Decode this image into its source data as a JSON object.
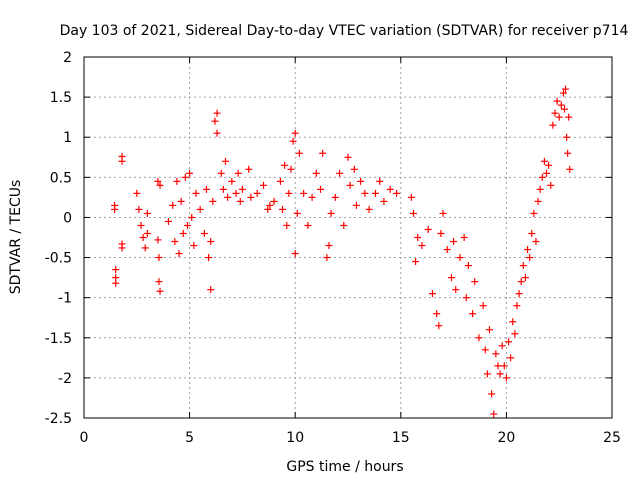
{
  "chart_data": {
    "type": "scatter",
    "title": "Day 103 of 2021, Sidereal Day-to-day VTEC variation (SDTVAR) for receiver p714",
    "xlabel": "GPS time / hours",
    "ylabel": "SDTVAR / TECUs",
    "xlim": [
      0,
      25
    ],
    "ylim": [
      -2.5,
      2
    ],
    "xticks": [
      "0",
      "5",
      "10",
      "15",
      "20",
      "25"
    ],
    "yticks": [
      "-2.5",
      "-2",
      "-1.5",
      "-1",
      "-0.5",
      "0",
      "0.5",
      "1",
      "1.5",
      "2"
    ],
    "grid": true,
    "marker": "+",
    "color": "#ff0000",
    "series": [
      {
        "name": "SDTVAR p714",
        "points": [
          [
            1.45,
            0.15
          ],
          [
            1.45,
            0.1
          ],
          [
            1.5,
            -0.65
          ],
          [
            1.5,
            -0.75
          ],
          [
            1.5,
            -0.82
          ],
          [
            1.8,
            0.76
          ],
          [
            1.8,
            0.7
          ],
          [
            1.8,
            -0.33
          ],
          [
            1.8,
            -0.38
          ],
          [
            2.5,
            0.3
          ],
          [
            2.6,
            0.1
          ],
          [
            2.7,
            -0.1
          ],
          [
            2.8,
            -0.25
          ],
          [
            2.9,
            -0.38
          ],
          [
            3.0,
            -0.2
          ],
          [
            3.0,
            0.05
          ],
          [
            3.5,
            0.45
          ],
          [
            3.6,
            0.4
          ],
          [
            3.5,
            -0.28
          ],
          [
            3.55,
            -0.5
          ],
          [
            3.55,
            -0.8
          ],
          [
            3.6,
            -0.92
          ],
          [
            4.0,
            -0.05
          ],
          [
            4.2,
            0.15
          ],
          [
            4.3,
            -0.3
          ],
          [
            4.4,
            0.45
          ],
          [
            4.5,
            -0.45
          ],
          [
            4.6,
            0.2
          ],
          [
            4.7,
            -0.2
          ],
          [
            4.8,
            0.5
          ],
          [
            4.9,
            -0.1
          ],
          [
            5.0,
            0.55
          ],
          [
            5.1,
            0.0
          ],
          [
            5.2,
            -0.35
          ],
          [
            5.3,
            0.3
          ],
          [
            5.5,
            0.1
          ],
          [
            5.7,
            -0.2
          ],
          [
            5.8,
            0.35
          ],
          [
            5.9,
            -0.5
          ],
          [
            6.0,
            -0.9
          ],
          [
            6.0,
            -0.3
          ],
          [
            6.1,
            0.2
          ],
          [
            6.2,
            1.2
          ],
          [
            6.3,
            1.3
          ],
          [
            6.3,
            1.05
          ],
          [
            6.5,
            0.55
          ],
          [
            6.6,
            0.35
          ],
          [
            6.7,
            0.7
          ],
          [
            6.8,
            0.25
          ],
          [
            7.0,
            0.45
          ],
          [
            7.2,
            0.3
          ],
          [
            7.3,
            0.55
          ],
          [
            7.4,
            0.2
          ],
          [
            7.5,
            0.35
          ],
          [
            7.8,
            0.6
          ],
          [
            7.9,
            0.25
          ],
          [
            8.2,
            0.3
          ],
          [
            8.5,
            0.4
          ],
          [
            8.7,
            0.1
          ],
          [
            8.8,
            0.15
          ],
          [
            9.0,
            0.2
          ],
          [
            9.3,
            0.45
          ],
          [
            9.4,
            0.1
          ],
          [
            9.5,
            0.65
          ],
          [
            9.6,
            -0.1
          ],
          [
            9.7,
            0.3
          ],
          [
            9.8,
            0.6
          ],
          [
            9.9,
            0.95
          ],
          [
            10.0,
            1.05
          ],
          [
            10.0,
            -0.45
          ],
          [
            10.1,
            0.05
          ],
          [
            10.2,
            0.8
          ],
          [
            10.4,
            0.3
          ],
          [
            10.6,
            -0.1
          ],
          [
            10.8,
            0.25
          ],
          [
            11.0,
            0.55
          ],
          [
            11.2,
            0.35
          ],
          [
            11.3,
            0.8
          ],
          [
            11.5,
            -0.5
          ],
          [
            11.6,
            -0.35
          ],
          [
            11.7,
            0.05
          ],
          [
            11.9,
            0.25
          ],
          [
            12.1,
            0.55
          ],
          [
            12.3,
            -0.1
          ],
          [
            12.5,
            0.75
          ],
          [
            12.6,
            0.4
          ],
          [
            12.8,
            0.6
          ],
          [
            12.9,
            0.15
          ],
          [
            13.1,
            0.45
          ],
          [
            13.3,
            0.3
          ],
          [
            13.5,
            0.1
          ],
          [
            13.8,
            0.3
          ],
          [
            14.0,
            0.45
          ],
          [
            14.2,
            0.2
          ],
          [
            14.5,
            0.35
          ],
          [
            14.8,
            0.3
          ],
          [
            15.5,
            0.25
          ],
          [
            15.6,
            0.05
          ],
          [
            15.7,
            -0.55
          ],
          [
            15.8,
            -0.25
          ],
          [
            16.0,
            -0.35
          ],
          [
            16.3,
            -0.15
          ],
          [
            16.5,
            -0.95
          ],
          [
            16.7,
            -1.2
          ],
          [
            16.8,
            -1.35
          ],
          [
            16.9,
            -0.2
          ],
          [
            17.0,
            0.05
          ],
          [
            17.2,
            -0.4
          ],
          [
            17.4,
            -0.75
          ],
          [
            17.5,
            -0.3
          ],
          [
            17.6,
            -0.9
          ],
          [
            17.8,
            -0.5
          ],
          [
            18.0,
            -0.25
          ],
          [
            18.1,
            -1.0
          ],
          [
            18.2,
            -0.6
          ],
          [
            18.4,
            -1.2
          ],
          [
            18.5,
            -0.8
          ],
          [
            18.7,
            -1.5
          ],
          [
            18.9,
            -1.1
          ],
          [
            19.0,
            -1.65
          ],
          [
            19.1,
            -1.95
          ],
          [
            19.2,
            -1.4
          ],
          [
            19.3,
            -2.2
          ],
          [
            19.4,
            -2.45
          ],
          [
            19.5,
            -1.7
          ],
          [
            19.6,
            -1.85
          ],
          [
            19.7,
            -1.95
          ],
          [
            19.8,
            -1.6
          ],
          [
            19.9,
            -1.85
          ],
          [
            20.0,
            -2.0
          ],
          [
            20.1,
            -1.55
          ],
          [
            20.2,
            -1.75
          ],
          [
            20.3,
            -1.3
          ],
          [
            20.4,
            -1.45
          ],
          [
            20.5,
            -1.1
          ],
          [
            20.6,
            -0.95
          ],
          [
            20.7,
            -0.8
          ],
          [
            20.8,
            -0.6
          ],
          [
            20.9,
            -0.75
          ],
          [
            21.0,
            -0.4
          ],
          [
            21.1,
            -0.5
          ],
          [
            21.2,
            -0.2
          ],
          [
            21.3,
            0.05
          ],
          [
            21.4,
            -0.3
          ],
          [
            21.5,
            0.2
          ],
          [
            21.6,
            0.35
          ],
          [
            21.7,
            0.5
          ],
          [
            21.8,
            0.7
          ],
          [
            21.9,
            0.55
          ],
          [
            22.0,
            0.65
          ],
          [
            22.1,
            0.4
          ],
          [
            22.2,
            1.15
          ],
          [
            22.3,
            1.3
          ],
          [
            22.4,
            1.45
          ],
          [
            22.5,
            1.25
          ],
          [
            22.6,
            1.4
          ],
          [
            22.7,
            1.55
          ],
          [
            22.75,
            1.35
          ],
          [
            22.8,
            1.6
          ],
          [
            22.85,
            1.0
          ],
          [
            22.9,
            0.8
          ],
          [
            22.95,
            1.25
          ],
          [
            23.0,
            0.6
          ]
        ]
      }
    ]
  }
}
